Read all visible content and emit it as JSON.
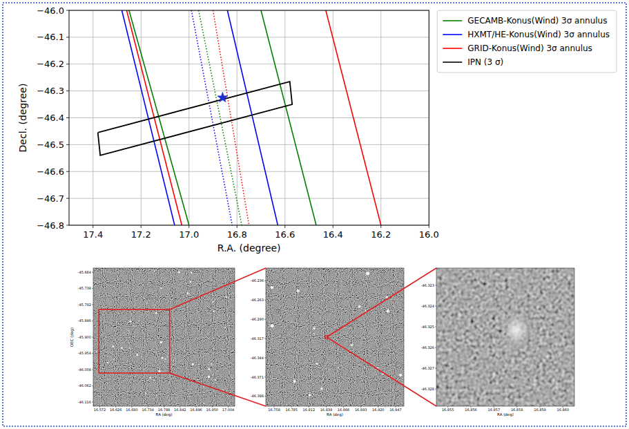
{
  "chart_data": {
    "type": "line",
    "xlabel": "R.A. (degree)",
    "ylabel": "Decl. (degree)",
    "xlim": [
      17.5,
      16.0
    ],
    "ylim": [
      -46.8,
      -46.0
    ],
    "xticks": [
      17.4,
      17.2,
      {
        "value": 17,
        "label": "17.0"
      },
      16.8,
      16.6,
      16.4,
      16.2,
      {
        "value": 16,
        "label": "16.0"
      }
    ],
    "yticks": [
      {
        "value": -46,
        "label": "−46.0"
      },
      {
        "value": -46.1,
        "label": "−46.1"
      },
      {
        "value": -46.2,
        "label": "−46.2"
      },
      {
        "value": -46.3,
        "label": "−46.3"
      },
      {
        "value": -46.4,
        "label": "−46.4"
      },
      {
        "value": -46.5,
        "label": "−46.5"
      },
      {
        "value": -46.6,
        "label": "−46.6"
      },
      {
        "value": -46.7,
        "label": "−46.7"
      },
      {
        "value": -46.8,
        "label": "−46.8"
      }
    ],
    "grid": true,
    "legend": "right",
    "series": [
      {
        "name": "GECAMB-Konus(Wind) 3σ annulus",
        "color": "#008000",
        "line_style": "solid",
        "x": [
          17.25,
          17.0,
          null,
          16.7,
          16.47
        ],
        "values": [
          -46.0,
          -46.8,
          null,
          -46.0,
          -46.8
        ]
      },
      {
        "name": "HXMT/HE-Konus(Wind) 3σ annulus",
        "color": "#0000ff",
        "line_style": "solid",
        "x": [
          17.28,
          17.06,
          null,
          16.84,
          16.63
        ],
        "values": [
          -46.0,
          -46.8,
          null,
          -46.0,
          -46.8
        ]
      },
      {
        "name": "GRID-Konus(Wind) 3σ annulus",
        "color": "#ff0000",
        "line_style": "solid",
        "x": [
          17.26,
          17.03,
          null,
          16.43,
          16.2
        ],
        "values": [
          -46.0,
          -46.8,
          null,
          -46.0,
          -46.8
        ]
      },
      {
        "color": "#008000",
        "line_style": "dotted",
        "x": [
          16.96,
          16.78
        ],
        "values": [
          -46.0,
          -46.8
        ]
      },
      {
        "color": "#0000ff",
        "line_style": "dotted",
        "x": [
          16.99,
          16.82
        ],
        "values": [
          -46.0,
          -46.8
        ]
      },
      {
        "color": "#ff0000",
        "line_style": "dotted",
        "x": [
          16.9,
          16.75
        ],
        "values": [
          -46.0,
          -46.8
        ]
      },
      {
        "name": "IPN (3 σ)",
        "type": "polygon",
        "color": "#000000",
        "line_style": "solid",
        "x": [
          17.38,
          17.37,
          16.57,
          16.58,
          17.38
        ],
        "values": [
          -46.455,
          -46.54,
          -46.35,
          -46.265,
          -46.455
        ]
      },
      {
        "type": "scatter",
        "marker": "star",
        "color": "#1f2fd0",
        "x": [
          16.86
        ],
        "values": [
          -46.325
        ]
      }
    ]
  },
  "images": [
    {
      "xlabel": "RA (deg)",
      "ylabel": "DEC (deg)",
      "xlim": [
        16.55,
        17.026
      ],
      "ylim": [
        -46.13,
        -45.67
      ],
      "xticks": [
        16.572,
        16.626,
        {
          "value": 16.68,
          "label": "16.680"
        },
        16.734,
        16.788,
        16.842,
        16.896,
        {
          "value": 16.95,
          "label": "16.950"
        },
        17.004
      ],
      "yticks": [
        -45.684,
        -45.738,
        -45.792,
        -45.846,
        {
          "value": -45.9,
          "label": "-45.900"
        },
        -45.954,
        -46.008,
        -46.062,
        -46.116
      ]
    },
    {
      "xlabel": "RA (deg)",
      "xlim": [
        16.745,
        16.96
      ],
      "ylim": [
        -46.412,
        -46.218
      ],
      "xticks": [
        16.758,
        16.785,
        16.812,
        16.839,
        16.866,
        16.893,
        {
          "value": 16.92,
          "label": "16.920"
        },
        16.947
      ],
      "yticks": [
        -46.236,
        -46.263,
        {
          "value": -46.29,
          "label": "-46.290"
        },
        -46.317,
        -46.344,
        -46.371,
        -46.398
      ]
    },
    {
      "xlabel": "RA (deg)",
      "xlim": [
        16.8545,
        16.8605
      ],
      "ylim": [
        -46.32883,
        -46.32217
      ],
      "xticks": [
        16.855,
        16.856,
        16.857,
        16.858,
        16.859,
        {
          "value": 16.86,
          "label": "16.860"
        }
      ],
      "yticks": [
        -46.323,
        -46.324,
        -46.325,
        -46.326,
        -46.327,
        -46.328
      ]
    }
  ]
}
